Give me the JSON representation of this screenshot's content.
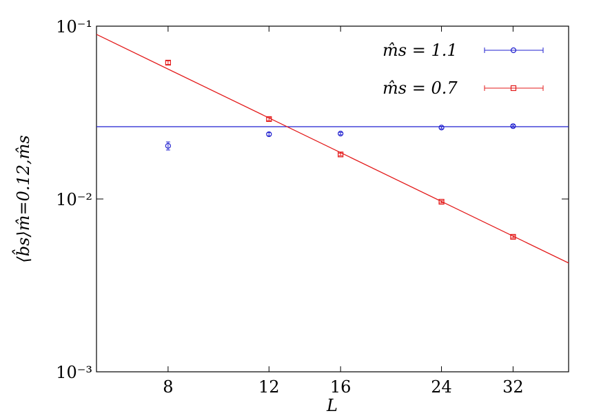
{
  "chart_data": {
    "type": "errorbar",
    "x_label": "L",
    "y_label": "⟨b̂s⟩m̂=0.12,m̂s",
    "x_log": true,
    "y_log": true,
    "xlim": [
      6,
      40
    ],
    "ylim": [
      0.001,
      0.1
    ],
    "xticks": [
      8,
      12,
      16,
      24,
      32
    ],
    "yticks": [
      {
        "value": 0.001,
        "label": "10⁻³"
      },
      {
        "value": 0.01,
        "label": "10⁻²"
      },
      {
        "value": 0.1,
        "label": "10⁻¹"
      }
    ],
    "legend": "upper right",
    "series": [
      {
        "name": "m̂s = 1.1",
        "color": "#1f1fcf",
        "marker": "circle",
        "x": [
          8,
          12,
          16,
          24,
          32
        ],
        "values": [
          0.0203,
          0.0237,
          0.0239,
          0.0259,
          0.0264
        ],
        "errors": [
          0.0011,
          0.0005,
          0.0004,
          0.0004,
          0.0004
        ]
      },
      {
        "name": "m̂s = 0.7",
        "color": "#e31a1a",
        "marker": "square",
        "x": [
          8,
          12,
          16,
          24,
          32
        ],
        "values": [
          0.0615,
          0.029,
          0.0181,
          0.00964,
          0.00604
        ],
        "errors": [
          0.0015,
          0.0006,
          0.0003,
          0.00015,
          0.0001
        ]
      }
    ],
    "fit_lines": [
      {
        "color": "#1f1fcf",
        "x": [
          6,
          40
        ],
        "values": [
          0.0262,
          0.0262
        ]
      },
      {
        "color": "#e31a1a",
        "x": [
          6,
          40
        ],
        "values": [
          0.0896,
          0.00426
        ]
      }
    ]
  }
}
